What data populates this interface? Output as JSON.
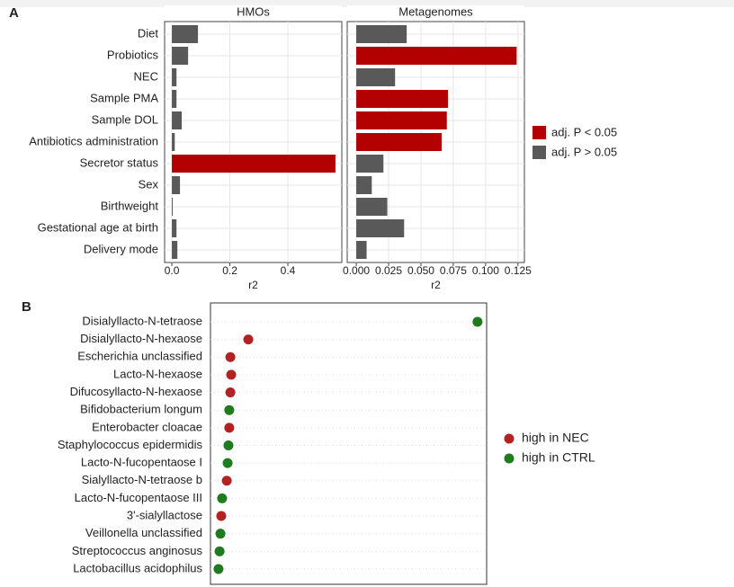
{
  "chart_data": [
    {
      "type": "bar",
      "orientation": "horizontal",
      "panel_label": "A",
      "title": "HMOs",
      "xlabel": "r2",
      "categories": [
        "Diet",
        "Probiotics",
        "NEC",
        "Sample PMA",
        "Sample DOL",
        "Antibiotics administration",
        "Secretor status",
        "Sex",
        "Birthweight",
        "Gestational age at birth",
        "Delivery mode"
      ],
      "values": [
        0.09,
        0.056,
        0.016,
        0.016,
        0.034,
        0.01,
        0.564,
        0.028,
        0.003,
        0.016,
        0.019
      ],
      "bar_colors": [
        "#595959",
        "#595959",
        "#595959",
        "#595959",
        "#595959",
        "#595959",
        "#b30000",
        "#595959",
        "#595959",
        "#595959",
        "#595959"
      ],
      "xlim": [
        -0.025,
        0.586
      ],
      "xticks": [
        {
          "value": 0,
          "label": "0.0"
        },
        0.2,
        0.4
      ],
      "grid": true,
      "legend": [
        {
          "name": "adj. P < 0.05",
          "color": "#b30000"
        },
        {
          "name": "adj. P > 0.05",
          "color": "#595959"
        }
      ]
    },
    {
      "type": "bar",
      "orientation": "horizontal",
      "title": "Metagenomes",
      "xlabel": "r2",
      "values": [
        0.039,
        0.124,
        0.03,
        0.071,
        0.07,
        0.066,
        0.021,
        0.012,
        0.024,
        0.037,
        0.008
      ],
      "bar_colors": [
        "#595959",
        "#b30000",
        "#595959",
        "#b30000",
        "#b30000",
        "#b30000",
        "#595959",
        "#595959",
        "#595959",
        "#595959",
        "#595959"
      ],
      "xlim": [
        -0.007,
        0.13
      ],
      "xticks": [
        {
          "value": 0,
          "label": "0.000"
        },
        0.025,
        {
          "value": 0.05,
          "label": "0.050"
        },
        0.075,
        {
          "value": 0.1,
          "label": "0.100"
        },
        0.125
      ],
      "grid": true
    },
    {
      "type": "dot",
      "panel_label": "B",
      "categories": [
        "Disialyllacto-N-tetraose",
        "Disialyllacto-N-hexaose",
        "Escherichia unclassified",
        "Lacto-N-hexaose",
        "Difucosyllacto-N-hexaose",
        "Bifidobacterium longum",
        "Enterobacter cloacae",
        "Staphylococcus epidermidis",
        "Lacto-N-fucopentaose I",
        "Sialyllacto-N-tetraose b",
        "Lacto-N-fucopentaose III",
        "3'-sialyllactose",
        "Veillonella unclassified",
        "Streptococcus anginosus",
        "Lactobacillus acidophilus"
      ],
      "values": [
        0.967,
        0.137,
        0.072,
        0.075,
        0.072,
        0.068,
        0.068,
        0.065,
        0.062,
        0.059,
        0.042,
        0.039,
        0.036,
        0.033,
        0.029
      ],
      "point_colors": [
        "#1e7b1e",
        "#b22222",
        "#b22222",
        "#b22222",
        "#b22222",
        "#1e7b1e",
        "#b22222",
        "#1e7b1e",
        "#1e7b1e",
        "#b22222",
        "#1e7b1e",
        "#b22222",
        "#1e7b1e",
        "#1e7b1e",
        "#1e7b1e"
      ],
      "xlim": [
        0,
        1
      ],
      "legend": [
        {
          "name": "high in NEC",
          "color": "#b22222"
        },
        {
          "name": "high in CTRL",
          "color": "#1e7b1e"
        }
      ]
    }
  ]
}
